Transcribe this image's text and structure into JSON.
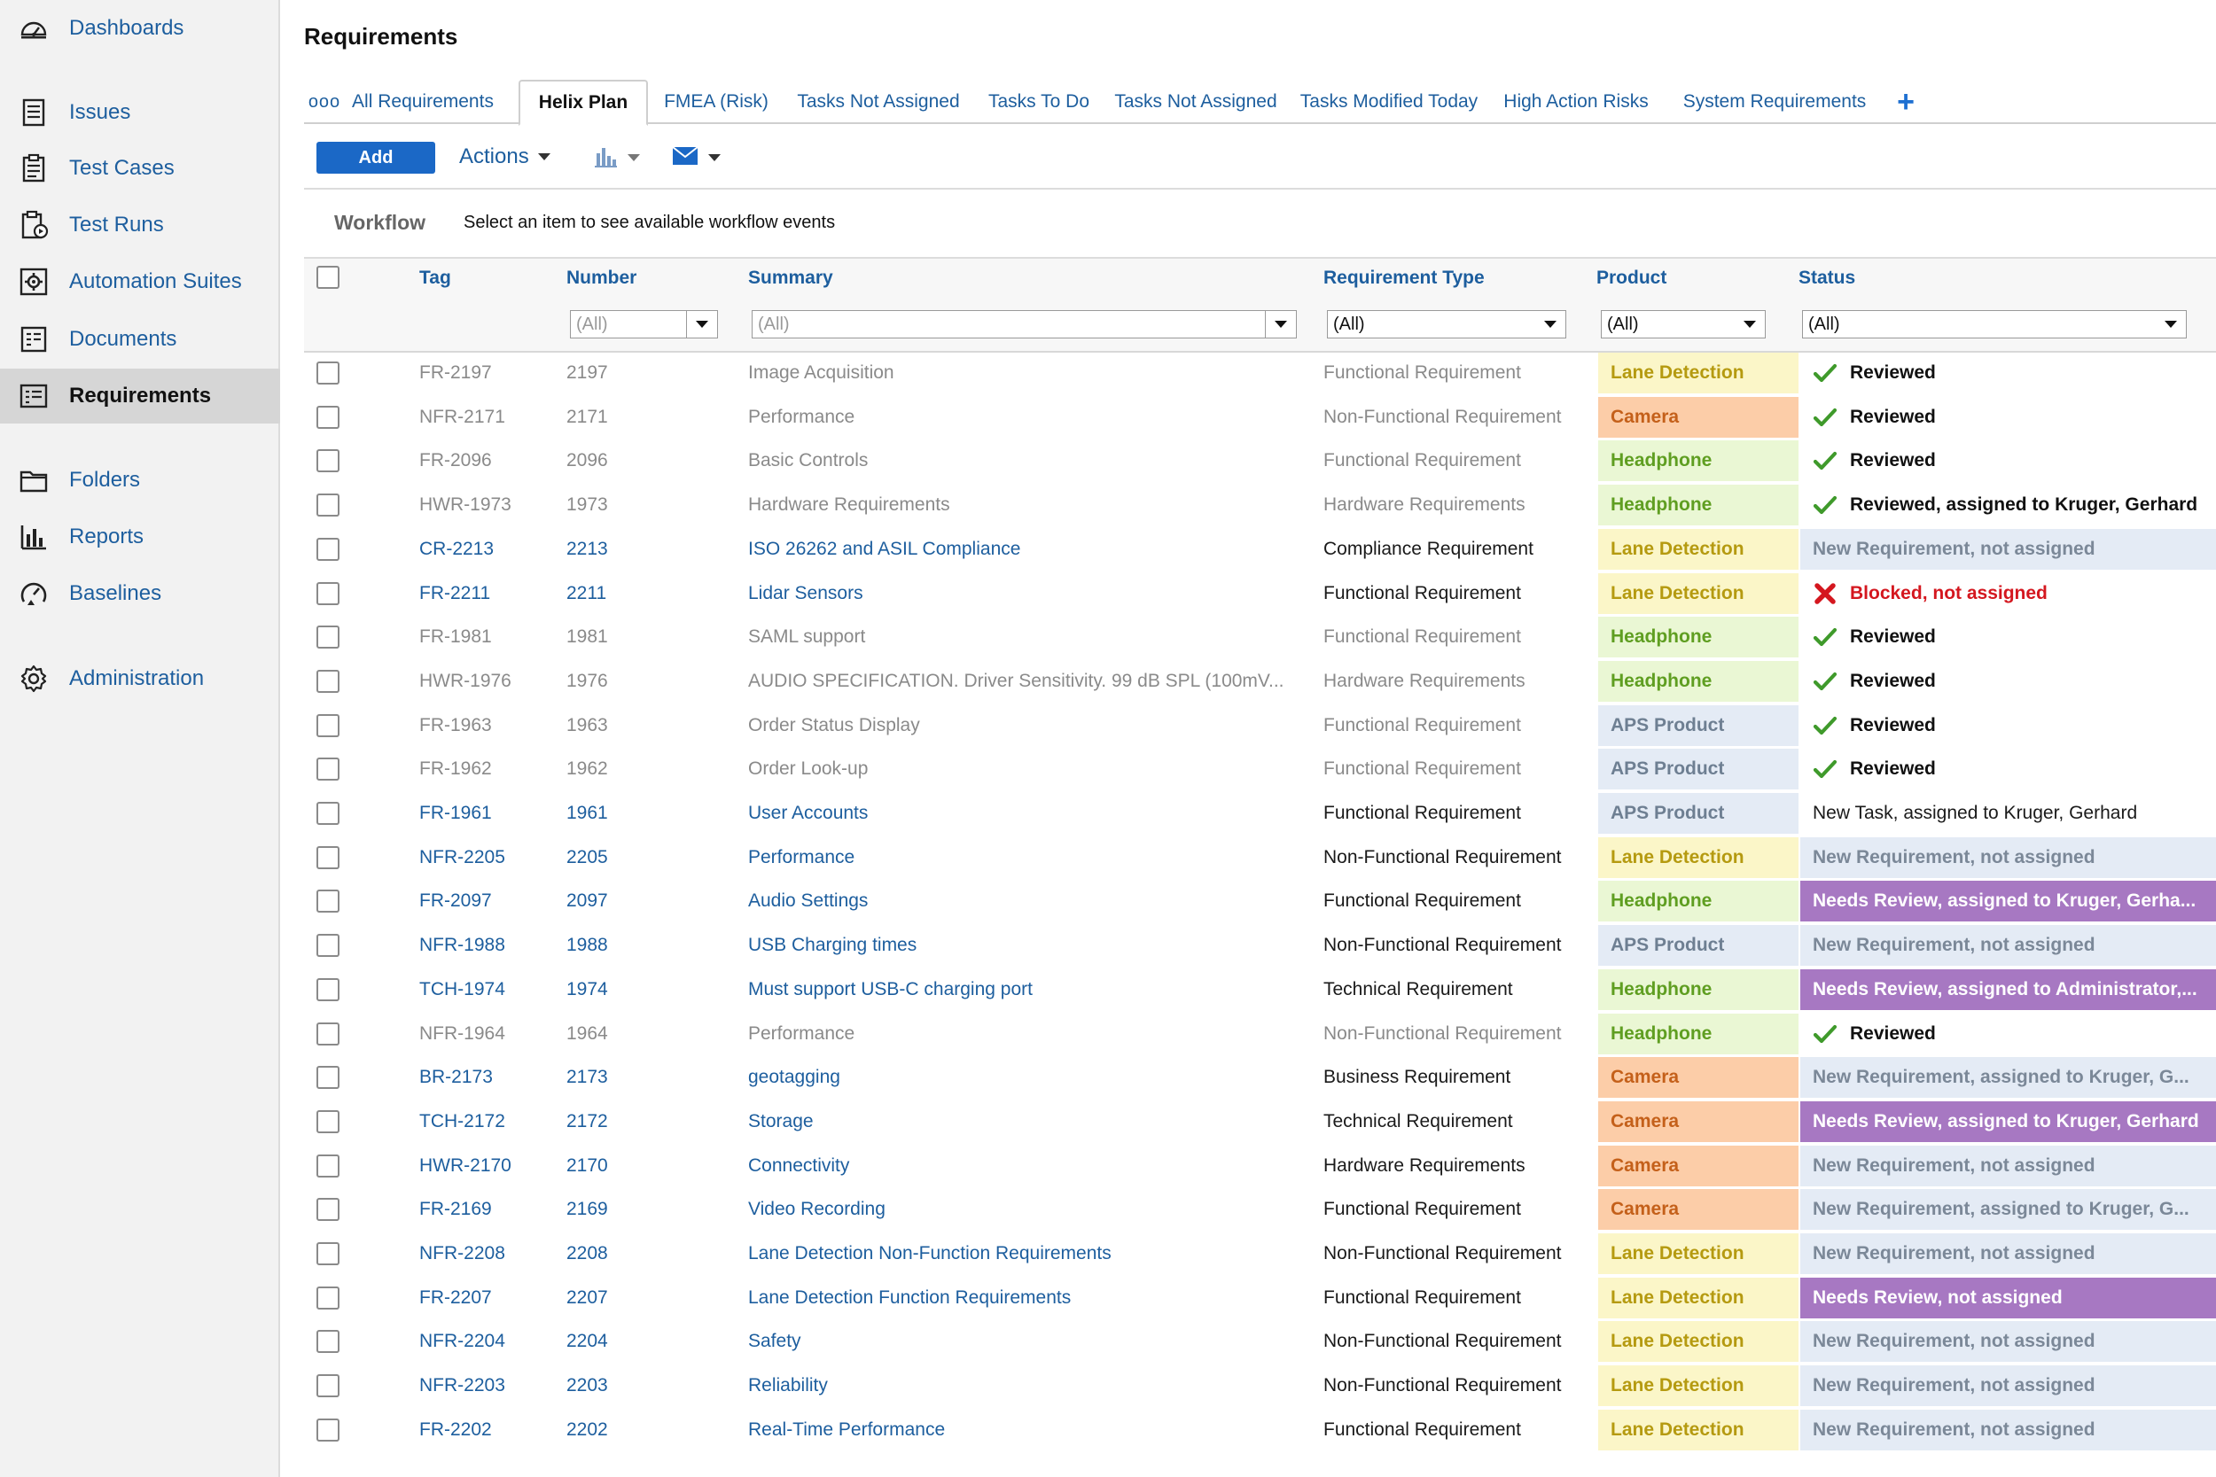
{
  "sidebar": {
    "items": [
      {
        "label": "Dashboards",
        "icon": "dashboard-icon"
      },
      {
        "label": "Issues",
        "icon": "issues-icon"
      },
      {
        "label": "Test Cases",
        "icon": "test-cases-icon"
      },
      {
        "label": "Test Runs",
        "icon": "test-runs-icon"
      },
      {
        "label": "Automation Suites",
        "icon": "automation-suites-icon"
      },
      {
        "label": "Documents",
        "icon": "documents-icon"
      },
      {
        "label": "Requirements",
        "icon": "requirements-icon",
        "active": true
      },
      {
        "label": "Folders",
        "icon": "folder-icon"
      },
      {
        "label": "Reports",
        "icon": "reports-icon"
      },
      {
        "label": "Baselines",
        "icon": "baselines-icon"
      },
      {
        "label": "Administration",
        "icon": "gear-icon"
      }
    ]
  },
  "page": {
    "title": "Requirements"
  },
  "tabs": {
    "more": "ooo",
    "items": [
      "All Requirements",
      "Helix Plan",
      "FMEA (Risk)",
      "Tasks Not Assigned",
      "Tasks To Do",
      "Tasks Not Assigned",
      "Tasks Modified Today",
      "High Action Risks",
      "System Requirements"
    ],
    "active": "Helix Plan",
    "add": "+"
  },
  "toolbar": {
    "add_label": "Add",
    "actions_label": "Actions"
  },
  "workflow": {
    "label": "Workflow",
    "text": "Select an item to see available workflow events"
  },
  "grid": {
    "columns": [
      "Tag",
      "Number",
      "Summary",
      "Requirement Type",
      "Product",
      "Status"
    ],
    "filters": {
      "number": "(All)",
      "summary": "(All)",
      "type": "(All)",
      "product": "(All)",
      "status": "(All)"
    },
    "rows": [
      {
        "tag": "FR-2197",
        "number": "2197",
        "summary": "Image Acquisition",
        "type": "Functional Requirement",
        "product": "Lane Detection",
        "status": "Reviewed",
        "kind": "reviewed",
        "muted": true
      },
      {
        "tag": "NFR-2171",
        "number": "2171",
        "summary": "Performance",
        "type": "Non-Functional Requirement",
        "product": "Camera",
        "status": "Reviewed",
        "kind": "reviewed",
        "muted": true
      },
      {
        "tag": "FR-2096",
        "number": "2096",
        "summary": "Basic Controls",
        "type": "Functional Requirement",
        "product": "Headphone",
        "status": "Reviewed",
        "kind": "reviewed",
        "muted": true
      },
      {
        "tag": "HWR-1973",
        "number": "1973",
        "summary": "Hardware Requirements",
        "type": "Hardware Requirements",
        "product": "Headphone",
        "status": "Reviewed, assigned to Kruger, Gerhard",
        "kind": "reviewed",
        "muted": true
      },
      {
        "tag": "CR-2213",
        "number": "2213",
        "summary": "ISO 26262 and ASIL Compliance",
        "type": "Compliance Requirement",
        "product": "Lane Detection",
        "status": "New Requirement, not assigned",
        "kind": "new",
        "muted": false
      },
      {
        "tag": "FR-2211",
        "number": "2211",
        "summary": "Lidar Sensors",
        "type": "Functional Requirement",
        "product": "Lane Detection",
        "status": "Blocked, not assigned",
        "kind": "blocked",
        "muted": false
      },
      {
        "tag": "FR-1981",
        "number": "1981",
        "summary": "SAML support",
        "type": "Functional Requirement",
        "product": "Headphone",
        "status": "Reviewed",
        "kind": "reviewed",
        "muted": true
      },
      {
        "tag": "HWR-1976",
        "number": "1976",
        "summary": "AUDIO SPECIFICATION. Driver Sensitivity. 99 dB SPL (100mV...",
        "type": "Hardware Requirements",
        "product": "Headphone",
        "status": "Reviewed",
        "kind": "reviewed",
        "muted": true
      },
      {
        "tag": "FR-1963",
        "number": "1963",
        "summary": "Order Status Display",
        "type": "Functional Requirement",
        "product": "APS Product",
        "status": "Reviewed",
        "kind": "reviewed",
        "muted": true
      },
      {
        "tag": "FR-1962",
        "number": "1962",
        "summary": "Order Look-up",
        "type": "Functional Requirement",
        "product": "APS Product",
        "status": "Reviewed",
        "kind": "reviewed",
        "muted": true
      },
      {
        "tag": "FR-1961",
        "number": "1961",
        "summary": "User Accounts",
        "type": "Functional Requirement",
        "product": "APS Product",
        "status": "New Task, assigned to Kruger, Gerhard",
        "kind": "task",
        "muted": false
      },
      {
        "tag": "NFR-2205",
        "number": "2205",
        "summary": "Performance",
        "type": "Non-Functional Requirement",
        "product": "Lane Detection",
        "status": "New Requirement, not assigned",
        "kind": "new",
        "muted": false
      },
      {
        "tag": "FR-2097",
        "number": "2097",
        "summary": "Audio Settings",
        "type": "Functional Requirement",
        "product": "Headphone",
        "status": "Needs Review, assigned to Kruger, Gerha...",
        "kind": "review",
        "muted": false
      },
      {
        "tag": "NFR-1988",
        "number": "1988",
        "summary": "USB Charging times",
        "type": "Non-Functional Requirement",
        "product": "APS Product",
        "status": "New Requirement, not assigned",
        "kind": "new",
        "muted": false
      },
      {
        "tag": "TCH-1974",
        "number": "1974",
        "summary": "Must support USB-C charging port",
        "type": "Technical Requirement",
        "product": "Headphone",
        "status": "Needs Review, assigned to Administrator,...",
        "kind": "review",
        "muted": false
      },
      {
        "tag": "NFR-1964",
        "number": "1964",
        "summary": "Performance",
        "type": "Non-Functional Requirement",
        "product": "Headphone",
        "status": "Reviewed",
        "kind": "reviewed",
        "muted": true
      },
      {
        "tag": "BR-2173",
        "number": "2173",
        "summary": "geotagging",
        "type": "Business Requirement",
        "product": "Camera",
        "status": "New Requirement, assigned to Kruger, G...",
        "kind": "new",
        "muted": false
      },
      {
        "tag": "TCH-2172",
        "number": "2172",
        "summary": "Storage",
        "type": "Technical Requirement",
        "product": "Camera",
        "status": "Needs Review, assigned to Kruger, Gerhard",
        "kind": "review",
        "muted": false
      },
      {
        "tag": "HWR-2170",
        "number": "2170",
        "summary": "Connectivity",
        "type": "Hardware Requirements",
        "product": "Camera",
        "status": "New Requirement, not assigned",
        "kind": "new",
        "muted": false
      },
      {
        "tag": "FR-2169",
        "number": "2169",
        "summary": "Video Recording",
        "type": "Functional Requirement",
        "product": "Camera",
        "status": "New Requirement, assigned to Kruger, G...",
        "kind": "new",
        "muted": false
      },
      {
        "tag": "NFR-2208",
        "number": "2208",
        "summary": "Lane Detection Non-Function Requirements",
        "type": "Non-Functional Requirement",
        "product": "Lane Detection",
        "status": "New Requirement, not assigned",
        "kind": "new",
        "muted": false
      },
      {
        "tag": "FR-2207",
        "number": "2207",
        "summary": "Lane Detection Function Requirements",
        "type": "Functional Requirement",
        "product": "Lane Detection",
        "status": "Needs Review, not assigned",
        "kind": "review",
        "muted": false
      },
      {
        "tag": "NFR-2204",
        "number": "2204",
        "summary": "Safety",
        "type": "Non-Functional Requirement",
        "product": "Lane Detection",
        "status": "New Requirement, not assigned",
        "kind": "new",
        "muted": false
      },
      {
        "tag": "NFR-2203",
        "number": "2203",
        "summary": "Reliability",
        "type": "Non-Functional Requirement",
        "product": "Lane Detection",
        "status": "New Requirement, not assigned",
        "kind": "new",
        "muted": false
      },
      {
        "tag": "FR-2202",
        "number": "2202",
        "summary": "Real-Time Performance",
        "type": "Functional Requirement",
        "product": "Lane Detection",
        "status": "New Requirement, not assigned",
        "kind": "new",
        "muted": false
      }
    ]
  },
  "colors": {
    "link": "#1d5e9e",
    "accent": "#1b68c6",
    "product": {
      "Lane Detection": {
        "bg": "#fbf6c8",
        "fg": "#b59a10"
      },
      "Camera": {
        "bg": "#fccda8",
        "fg": "#c4601a"
      },
      "Headphone": {
        "bg": "#eaf7d4",
        "fg": "#5f9e21"
      },
      "APS Product": {
        "bg": "#e4ebf5",
        "fg": "#6e7f92"
      }
    },
    "status": {
      "reviewed": {
        "bg": "#ffffff",
        "fg": "#111111"
      },
      "new": {
        "bg": "#e4ebf5",
        "fg": "#7b8898"
      },
      "review": {
        "bg": "#a778c2",
        "fg": "#ffffff"
      },
      "blocked": {
        "bg": "#ffffff",
        "fg": "#d4171f"
      },
      "task": {
        "bg": "#ffffff",
        "fg": "#1a1a1a"
      }
    },
    "edge": {
      "Lane Detection": "#fbf6c8",
      "Camera": "#fccda8",
      "Headphone": "#eaf7d4",
      "APS Product": "#e4ebf5"
    }
  }
}
